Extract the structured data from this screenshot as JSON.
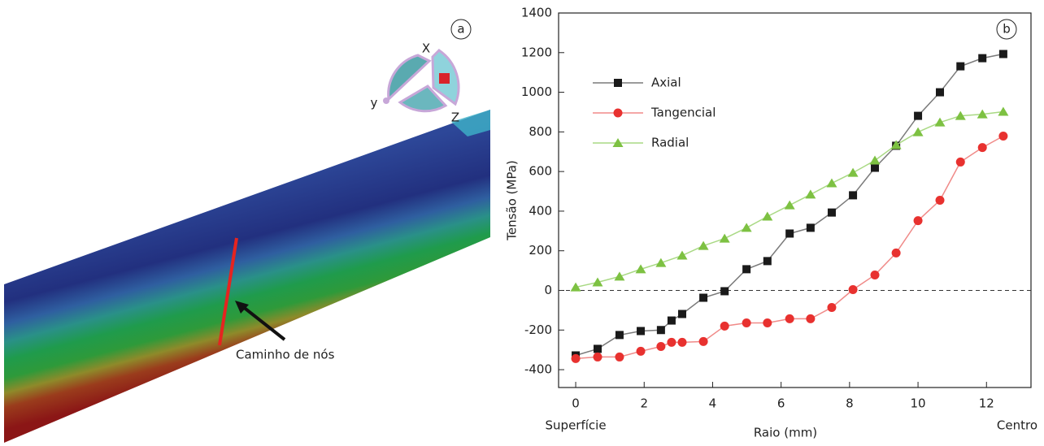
{
  "figure_a": {
    "label": "a",
    "axis_x": "X",
    "axis_y": "y",
    "axis_z": "Z",
    "path_label": "Caminho de nós"
  },
  "chart_data": {
    "type": "line",
    "panel_label": "b",
    "ylabel": "Tensão (MPa)",
    "xlabel": "Raio (mm)",
    "left_annotation": "Superfície",
    "right_annotation": "Centro",
    "xlim": [
      -0.5,
      13.3
    ],
    "ylim": [
      -490,
      1400
    ],
    "xticks": [
      0,
      2,
      4,
      6,
      8,
      10,
      12
    ],
    "yticks": [
      -400,
      -200,
      0,
      200,
      400,
      600,
      800,
      1000,
      1200,
      1400
    ],
    "zero_line": 0,
    "legend": "upper left",
    "series": [
      {
        "name": "Axial",
        "color": "#1a1a1a",
        "line_color": "#7a7a7a",
        "marker": "square",
        "x": [
          0,
          0.64,
          1.28,
          1.9,
          2.49,
          2.8,
          3.11,
          3.73,
          4.35,
          4.99,
          5.6,
          6.25,
          6.86,
          7.48,
          8.1,
          8.74,
          9.36,
          10.0,
          10.64,
          11.24,
          11.88,
          12.49
        ],
        "values": [
          -328,
          -295,
          -225,
          -205,
          -200,
          -152,
          -119,
          -37,
          -4,
          107,
          148,
          287,
          316,
          393,
          480,
          619,
          730,
          881,
          1000,
          1131,
          1172,
          1193
        ]
      },
      {
        "name": "Tangencial",
        "color": "#e8312f",
        "line_color": "#f08a88",
        "marker": "circle",
        "x": [
          0,
          0.64,
          1.28,
          1.9,
          2.49,
          2.8,
          3.11,
          3.73,
          4.35,
          4.99,
          5.6,
          6.25,
          6.86,
          7.48,
          8.1,
          8.74,
          9.36,
          10.0,
          10.64,
          11.24,
          11.88,
          12.49
        ],
        "values": [
          -344,
          -336,
          -336,
          -307,
          -283,
          -262,
          -262,
          -258,
          -180,
          -164,
          -164,
          -143,
          -143,
          -86,
          4,
          78,
          189,
          352,
          455,
          648,
          721,
          779
        ]
      },
      {
        "name": "Radial",
        "color": "#7dc142",
        "line_color": "#a9d984",
        "marker": "triangle",
        "x": [
          0,
          0.64,
          1.28,
          1.9,
          2.49,
          3.11,
          3.73,
          4.35,
          4.99,
          5.6,
          6.25,
          6.86,
          7.48,
          8.1,
          8.74,
          9.36,
          10.0,
          10.64,
          11.24,
          11.88,
          12.49
        ],
        "values": [
          16,
          41,
          70,
          107,
          139,
          176,
          225,
          262,
          316,
          373,
          430,
          484,
          541,
          594,
          656,
          734,
          799,
          848,
          881,
          889,
          902
        ]
      }
    ]
  }
}
